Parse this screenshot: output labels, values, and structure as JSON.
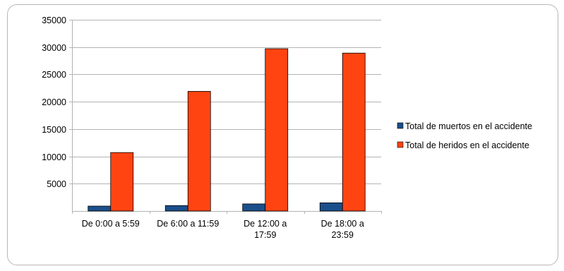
{
  "colors": {
    "series_1": "#1a4f8a",
    "series_2": "#ff4412",
    "grid": "#b3b3b3",
    "axis": "#b3b3b3",
    "bar_outline": "#000000",
    "frame_border": "#b8b8b8"
  },
  "chart_data": {
    "type": "bar",
    "categories": [
      [
        "De 0:00 a 5:59"
      ],
      [
        "De 6:00 a 11:59"
      ],
      [
        "De 12:00 a",
        "17:59"
      ],
      [
        "De 18:00 a",
        "23:59"
      ]
    ],
    "series": [
      {
        "name": "Total de muertos en el accidente",
        "values": [
          900,
          1000,
          1300,
          1500
        ]
      },
      {
        "name": "Total de heridos en el accidente",
        "values": [
          10700,
          21900,
          29700,
          28900
        ]
      }
    ],
    "title": "",
    "xlabel": "",
    "ylabel": "",
    "ylim": [
      0,
      35000
    ],
    "yticks": [
      5000,
      10000,
      15000,
      20000,
      25000,
      30000,
      35000
    ],
    "grid": true,
    "legend_position": "right"
  }
}
